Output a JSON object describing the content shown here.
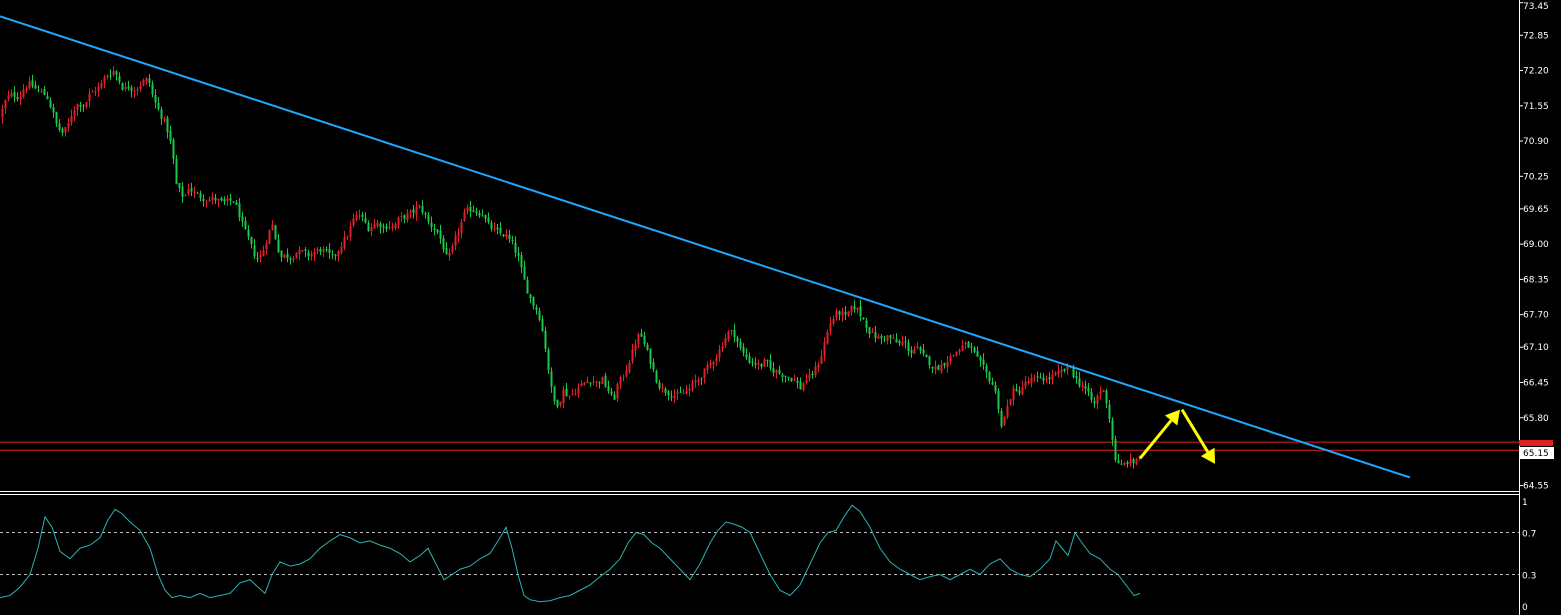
{
  "chart_data": [
    {
      "type": "candlestick",
      "grid": false,
      "y_axis_position": "right",
      "ylim": [
        64.45,
        73.5
      ],
      "yticks": [
        "73.45",
        "72.85",
        "72.20",
        "71.55",
        "70.90",
        "70.25",
        "69.65",
        "69.00",
        "68.35",
        "67.70",
        "67.10",
        "66.45",
        "65.80",
        "65.15",
        "64.55"
      ],
      "current_price_label": "65.15",
      "colors": {
        "background": "#000000",
        "up_candle": "#e0202a",
        "down_candle": "#19c94a",
        "trendline": "#1ea8ff",
        "support_line": "#e02020",
        "arrows": "#ffff00",
        "axis": "#ffffff"
      },
      "close_path": [
        [
          0,
          71.35
        ],
        [
          4,
          71.6
        ],
        [
          9,
          71.75
        ],
        [
          14,
          71.75
        ],
        [
          19,
          71.7
        ],
        [
          24,
          71.9
        ],
        [
          30,
          71.95
        ],
        [
          36,
          71.85
        ],
        [
          42,
          71.8
        ],
        [
          47,
          71.7
        ],
        [
          52,
          71.45
        ],
        [
          57,
          71.15
        ],
        [
          62,
          71.05
        ],
        [
          67,
          71.15
        ],
        [
          72,
          71.45
        ],
        [
          78,
          71.6
        ],
        [
          84,
          71.55
        ],
        [
          89,
          71.75
        ],
        [
          95,
          71.85
        ],
        [
          100,
          71.9
        ],
        [
          105,
          72.1
        ],
        [
          110,
          72.15
        ],
        [
          114,
          72.2
        ],
        [
          118,
          72.05
        ],
        [
          123,
          71.85
        ],
        [
          128,
          71.9
        ],
        [
          133,
          71.85
        ],
        [
          138,
          71.9
        ],
        [
          143,
          72.0
        ],
        [
          148,
          72.05
        ],
        [
          152,
          71.75
        ],
        [
          156,
          71.55
        ],
        [
          160,
          71.4
        ],
        [
          164,
          71.25
        ],
        [
          168,
          71.05
        ],
        [
          172,
          70.7
        ],
        [
          176,
          70.1
        ],
        [
          180,
          69.95
        ],
        [
          184,
          69.85
        ],
        [
          188,
          70.05
        ],
        [
          193,
          69.95
        ],
        [
          198,
          69.9
        ],
        [
          203,
          69.85
        ],
        [
          208,
          69.8
        ],
        [
          213,
          69.85
        ],
        [
          218,
          69.8
        ],
        [
          223,
          69.75
        ],
        [
          228,
          69.8
        ],
        [
          233,
          69.8
        ],
        [
          238,
          69.6
        ],
        [
          243,
          69.3
        ],
        [
          248,
          69.1
        ],
        [
          253,
          68.85
        ],
        [
          258,
          68.7
        ],
        [
          263,
          68.9
        ],
        [
          268,
          69.2
        ],
        [
          272,
          69.35
        ],
        [
          276,
          69.05
        ],
        [
          280,
          68.75
        ],
        [
          285,
          68.8
        ],
        [
          290,
          68.75
        ],
        [
          296,
          68.85
        ],
        [
          302,
          68.85
        ],
        [
          308,
          68.8
        ],
        [
          314,
          68.85
        ],
        [
          320,
          68.9
        ],
        [
          326,
          68.85
        ],
        [
          332,
          68.75
        ],
        [
          338,
          68.9
        ],
        [
          343,
          69.05
        ],
        [
          348,
          69.2
        ],
        [
          353,
          69.45
        ],
        [
          358,
          69.55
        ],
        [
          363,
          69.45
        ],
        [
          368,
          69.3
        ],
        [
          373,
          69.35
        ],
        [
          378,
          69.4
        ],
        [
          383,
          69.3
        ],
        [
          388,
          69.35
        ],
        [
          393,
          69.3
        ],
        [
          398,
          69.45
        ],
        [
          403,
          69.5
        ],
        [
          408,
          69.55
        ],
        [
          413,
          69.6
        ],
        [
          418,
          69.7
        ],
        [
          423,
          69.6
        ],
        [
          428,
          69.4
        ],
        [
          433,
          69.3
        ],
        [
          438,
          69.2
        ],
        [
          442,
          69.0
        ],
        [
          446,
          68.75
        ],
        [
          450,
          68.8
        ],
        [
          455,
          69.1
        ],
        [
          460,
          69.35
        ],
        [
          465,
          69.6
        ],
        [
          470,
          69.65
        ],
        [
          476,
          69.6
        ],
        [
          482,
          69.55
        ],
        [
          488,
          69.35
        ],
        [
          494,
          69.25
        ],
        [
          500,
          69.2
        ],
        [
          506,
          69.15
        ],
        [
          512,
          69.0
        ],
        [
          518,
          68.75
        ],
        [
          522,
          68.45
        ],
        [
          526,
          68.2
        ],
        [
          530,
          68.0
        ],
        [
          534,
          67.85
        ],
        [
          538,
          67.75
        ],
        [
          542,
          67.4
        ],
        [
          546,
          67.0
        ],
        [
          550,
          66.4
        ],
        [
          554,
          66.1
        ],
        [
          558,
          66.05
        ],
        [
          563,
          66.3
        ],
        [
          568,
          66.2
        ],
        [
          573,
          66.25
        ],
        [
          578,
          66.35
        ],
        [
          584,
          66.45
        ],
        [
          590,
          66.5
        ],
        [
          596,
          66.45
        ],
        [
          602,
          66.5
        ],
        [
          608,
          66.3
        ],
        [
          613,
          66.1
        ],
        [
          617,
          66.4
        ],
        [
          622,
          66.55
        ],
        [
          627,
          66.75
        ],
        [
          632,
          67.0
        ],
        [
          636,
          67.25
        ],
        [
          640,
          67.35
        ],
        [
          645,
          67.1
        ],
        [
          650,
          66.85
        ],
        [
          655,
          66.55
        ],
        [
          660,
          66.35
        ],
        [
          665,
          66.3
        ],
        [
          670,
          66.25
        ],
        [
          676,
          66.2
        ],
        [
          682,
          66.25
        ],
        [
          688,
          66.3
        ],
        [
          694,
          66.45
        ],
        [
          700,
          66.55
        ],
        [
          706,
          66.7
        ],
        [
          712,
          66.85
        ],
        [
          718,
          67.0
        ],
        [
          724,
          67.25
        ],
        [
          729,
          67.4
        ],
        [
          734,
          67.35
        ],
        [
          739,
          67.1
        ],
        [
          744,
          66.95
        ],
        [
          749,
          66.85
        ],
        [
          755,
          66.8
        ],
        [
          760,
          66.75
        ],
        [
          765,
          66.85
        ],
        [
          770,
          66.7
        ],
        [
          776,
          66.65
        ],
        [
          782,
          66.6
        ],
        [
          788,
          66.55
        ],
        [
          794,
          66.5
        ],
        [
          800,
          66.35
        ],
        [
          805,
          66.5
        ],
        [
          810,
          66.55
        ],
        [
          815,
          66.7
        ],
        [
          820,
          66.9
        ],
        [
          825,
          67.25
        ],
        [
          830,
          67.55
        ],
        [
          835,
          67.7
        ],
        [
          840,
          67.75
        ],
        [
          845,
          67.65
        ],
        [
          850,
          67.8
        ],
        [
          855,
          67.85
        ],
        [
          860,
          67.7
        ],
        [
          865,
          67.55
        ],
        [
          870,
          67.35
        ],
        [
          875,
          67.3
        ],
        [
          880,
          67.25
        ],
        [
          886,
          67.3
        ],
        [
          892,
          67.25
        ],
        [
          898,
          67.15
        ],
        [
          904,
          67.2
        ],
        [
          910,
          67.0
        ],
        [
          916,
          67.1
        ],
        [
          922,
          66.95
        ],
        [
          928,
          66.85
        ],
        [
          934,
          66.7
        ],
        [
          940,
          66.75
        ],
        [
          946,
          66.85
        ],
        [
          952,
          66.95
        ],
        [
          958,
          67.05
        ],
        [
          964,
          67.15
        ],
        [
          970,
          67.1
        ],
        [
          976,
          66.9
        ],
        [
          982,
          66.75
        ],
        [
          988,
          66.55
        ],
        [
          994,
          66.35
        ],
        [
          998,
          66.0
        ],
        [
          1001,
          65.65
        ],
        [
          1005,
          65.85
        ],
        [
          1009,
          66.15
        ],
        [
          1013,
          66.3
        ],
        [
          1017,
          66.25
        ],
        [
          1021,
          66.35
        ],
        [
          1026,
          66.45
        ],
        [
          1031,
          66.5
        ],
        [
          1036,
          66.5
        ],
        [
          1041,
          66.55
        ],
        [
          1046,
          66.5
        ],
        [
          1051,
          66.55
        ],
        [
          1056,
          66.6
        ],
        [
          1061,
          66.65
        ],
        [
          1066,
          66.7
        ],
        [
          1070,
          66.75
        ],
        [
          1074,
          66.55
        ],
        [
          1078,
          66.45
        ],
        [
          1082,
          66.4
        ],
        [
          1086,
          66.3
        ],
        [
          1090,
          66.15
        ],
        [
          1094,
          66.05
        ],
        [
          1098,
          66.25
        ],
        [
          1102,
          66.35
        ],
        [
          1106,
          66.1
        ],
        [
          1110,
          65.7
        ],
        [
          1113,
          65.25
        ],
        [
          1116,
          64.95
        ],
        [
          1120,
          64.9
        ],
        [
          1124,
          64.95
        ],
        [
          1128,
          65.0
        ],
        [
          1132,
          64.95
        ],
        [
          1136,
          65.05
        ],
        [
          1139,
          65.1
        ]
      ],
      "annotations": [
        {
          "type": "trendline",
          "from": [
            0,
            73.2
          ],
          "to": [
            1410,
            64.7
          ]
        },
        {
          "type": "hline",
          "y": 65.35
        },
        {
          "type": "hline",
          "y": 65.2
        },
        {
          "type": "arrow",
          "from": [
            1140,
            65.05
          ],
          "to": [
            1180,
            65.95
          ]
        },
        {
          "type": "arrow",
          "from": [
            1182,
            65.95
          ],
          "to": [
            1215,
            64.95
          ]
        }
      ]
    },
    {
      "type": "line",
      "panel": "indicator",
      "ylim": [
        0,
        1
      ],
      "yticks": [
        "1",
        "0.7",
        "0.3",
        "0"
      ],
      "levels": [
        0.7,
        0.3
      ],
      "colors": {
        "line": "#2ab3b3",
        "levels": "#bbbbbb"
      },
      "x": [
        0,
        10,
        20,
        30,
        38,
        45,
        52,
        60,
        70,
        80,
        90,
        100,
        108,
        115,
        122,
        130,
        140,
        150,
        158,
        165,
        172,
        180,
        190,
        200,
        210,
        220,
        230,
        240,
        250,
        258,
        265,
        272,
        280,
        290,
        300,
        310,
        320,
        330,
        340,
        350,
        360,
        370,
        380,
        390,
        400,
        410,
        420,
        428,
        436,
        444,
        452,
        460,
        470,
        480,
        490,
        500,
        506,
        512,
        518,
        524,
        530,
        540,
        550,
        560,
        570,
        580,
        590,
        600,
        610,
        620,
        628,
        636,
        644,
        652,
        660,
        670,
        680,
        690,
        700,
        710,
        718,
        726,
        734,
        742,
        750,
        760,
        770,
        780,
        790,
        800,
        810,
        820,
        828,
        836,
        844,
        852,
        860,
        870,
        880,
        890,
        900,
        910,
        920,
        930,
        940,
        950,
        960,
        970,
        980,
        990,
        1000,
        1010,
        1020,
        1030,
        1040,
        1050,
        1056,
        1062,
        1068,
        1075,
        1082,
        1090,
        1100,
        1110,
        1118,
        1126,
        1134,
        1140
      ],
      "values": [
        0.08,
        0.1,
        0.18,
        0.3,
        0.55,
        0.85,
        0.75,
        0.52,
        0.45,
        0.55,
        0.58,
        0.65,
        0.82,
        0.92,
        0.88,
        0.8,
        0.72,
        0.55,
        0.3,
        0.15,
        0.08,
        0.1,
        0.08,
        0.12,
        0.08,
        0.1,
        0.12,
        0.22,
        0.25,
        0.18,
        0.12,
        0.3,
        0.42,
        0.38,
        0.4,
        0.45,
        0.55,
        0.62,
        0.68,
        0.65,
        0.6,
        0.62,
        0.58,
        0.55,
        0.5,
        0.42,
        0.48,
        0.55,
        0.4,
        0.25,
        0.3,
        0.35,
        0.38,
        0.45,
        0.5,
        0.65,
        0.75,
        0.55,
        0.3,
        0.1,
        0.06,
        0.04,
        0.05,
        0.08,
        0.1,
        0.15,
        0.2,
        0.28,
        0.35,
        0.45,
        0.6,
        0.7,
        0.68,
        0.6,
        0.55,
        0.45,
        0.35,
        0.25,
        0.4,
        0.6,
        0.72,
        0.8,
        0.78,
        0.75,
        0.7,
        0.5,
        0.3,
        0.15,
        0.1,
        0.2,
        0.4,
        0.6,
        0.7,
        0.72,
        0.85,
        0.96,
        0.9,
        0.75,
        0.55,
        0.42,
        0.35,
        0.3,
        0.25,
        0.28,
        0.3,
        0.25,
        0.3,
        0.35,
        0.3,
        0.4,
        0.45,
        0.35,
        0.3,
        0.28,
        0.35,
        0.45,
        0.62,
        0.55,
        0.48,
        0.7,
        0.6,
        0.5,
        0.45,
        0.35,
        0.3,
        0.2,
        0.1,
        0.12
      ]
    }
  ]
}
